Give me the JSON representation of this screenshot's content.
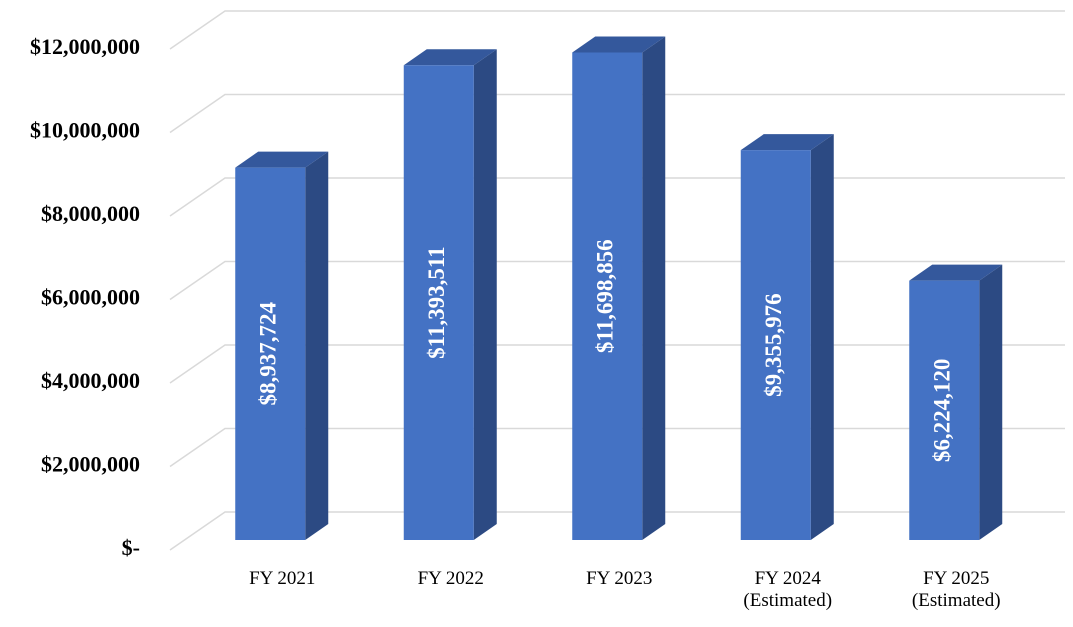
{
  "chart_data": {
    "type": "bar3d",
    "categories": [
      "FY 2021",
      "FY 2022",
      "FY 2023",
      "FY 2024 (Estimated)",
      "FY 2025 (Estimated)"
    ],
    "values": [
      8937724,
      11393511,
      11698856,
      9355976,
      6224120
    ],
    "value_labels": [
      "$8,937,724",
      "$11,393,511",
      "$11,698,856",
      "$9,355,976",
      "$6,224,120"
    ],
    "color": "#4472c4",
    "ylim": [
      0,
      12000000
    ],
    "yticks": [
      {
        "value": 0,
        "label": "$-"
      },
      {
        "value": 2000000,
        "label": "$2,000,000"
      },
      {
        "value": 4000000,
        "label": "$4,000,000"
      },
      {
        "value": 6000000,
        "label": "$6,000,000"
      },
      {
        "value": 8000000,
        "label": "$8,000,000"
      },
      {
        "value": 10000000,
        "label": "$10,000,000"
      },
      {
        "value": 12000000,
        "label": "$12,000,000"
      }
    ],
    "grid": true
  }
}
